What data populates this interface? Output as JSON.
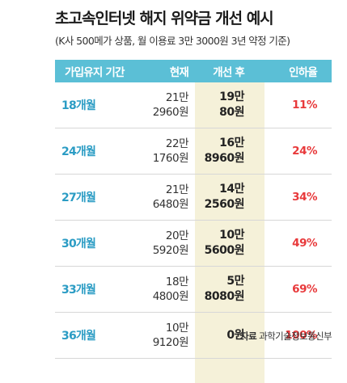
{
  "title": "초고속인터넷 해지 위약금 개선 예시",
  "subtitle": "(K사 500메가 상품, 월 이용료 3만 3000원 3년 약정 기준)",
  "source_label": "자료",
  "source_name": "과학기술정보통신부",
  "colors": {
    "header": "#5bbfd6",
    "highlight": "#f5f1d9",
    "period": "#2b9cc4",
    "rate": "#e8393b"
  },
  "chart_data": {
    "type": "table",
    "columns": [
      "가입유지 기간",
      "현재",
      "개선 후",
      "인하율"
    ],
    "rows": [
      {
        "period": "18개월",
        "current": [
          "21만",
          "2960원"
        ],
        "after": [
          "19만",
          "80원"
        ],
        "rate": "11%"
      },
      {
        "period": "24개월",
        "current": [
          "22만",
          "1760원"
        ],
        "after": [
          "16만",
          "8960원"
        ],
        "rate": "24%"
      },
      {
        "period": "27개월",
        "current": [
          "21만",
          "6480원"
        ],
        "after": [
          "14만",
          "2560원"
        ],
        "rate": "34%"
      },
      {
        "period": "30개월",
        "current": [
          "20만",
          "5920원"
        ],
        "after": [
          "10만",
          "5600원"
        ],
        "rate": "49%"
      },
      {
        "period": "33개월",
        "current": [
          "18만",
          "4800원"
        ],
        "after": [
          "5만",
          "8080원"
        ],
        "rate": "69%"
      },
      {
        "period": "36개월",
        "current": [
          "10만",
          "9120원"
        ],
        "after": [
          "0원"
        ],
        "rate": "100%"
      }
    ]
  }
}
